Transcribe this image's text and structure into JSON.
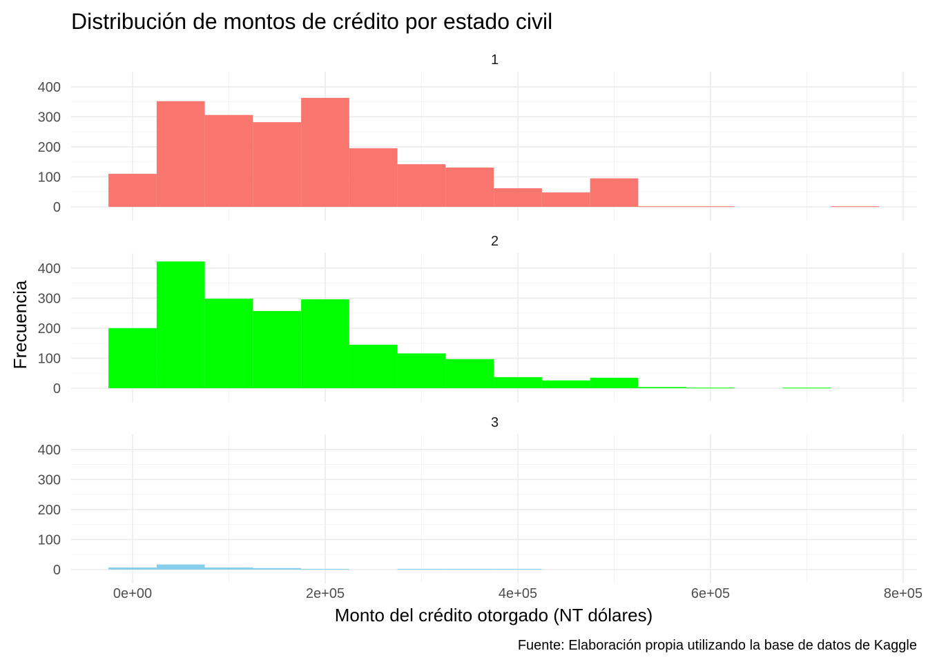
{
  "chart_data": {
    "type": "histogram",
    "title": "Distribución de montos de crédito por estado civil",
    "xlabel": "Monto del crédito otorgado (NT dólares)",
    "ylabel": "Frecuencia",
    "caption": "Fuente: Elaboración propia utilizando la base de datos de Kaggle",
    "xlim": [
      -62500,
      812500
    ],
    "ylim": [
      0,
      450
    ],
    "x_ticks": [
      0,
      200000,
      400000,
      600000,
      800000
    ],
    "x_tick_labels": [
      "0e+00",
      "2e+05",
      "4e+05",
      "6e+05",
      "8e+05"
    ],
    "y_ticks": [
      0,
      100,
      200,
      300,
      400
    ],
    "y_tick_labels": [
      "0",
      "100",
      "200",
      "300",
      "400"
    ],
    "bin_width": 50000,
    "bin_starts": [
      -25000,
      25000,
      75000,
      125000,
      175000,
      225000,
      275000,
      325000,
      375000,
      425000,
      475000,
      525000,
      575000,
      625000,
      675000,
      725000
    ],
    "grid": true,
    "legend": "none",
    "panels": [
      {
        "strip_label": "1",
        "color": "#F8766D",
        "counts": [
          110,
          352,
          306,
          282,
          363,
          195,
          142,
          131,
          62,
          48,
          95,
          2,
          2,
          0,
          0,
          2
        ]
      },
      {
        "strip_label": "2",
        "color": "#00FF00",
        "counts": [
          200,
          422,
          298,
          257,
          296,
          145,
          116,
          97,
          37,
          26,
          35,
          4,
          2,
          0,
          2,
          0
        ]
      },
      {
        "strip_label": "3",
        "color": "#87CEEB",
        "counts": [
          7,
          17,
          7,
          5,
          2,
          0,
          2,
          2,
          2,
          0,
          0,
          0,
          0,
          0,
          0,
          0
        ]
      }
    ]
  }
}
